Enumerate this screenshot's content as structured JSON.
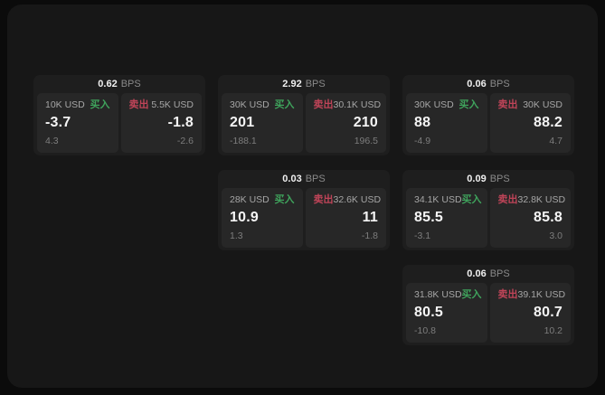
{
  "labels": {
    "buy": "买入",
    "sell": "卖出",
    "bps_unit": "BPS"
  },
  "colors": {
    "buy_text": "#3fa35c",
    "sell_text": "#bf4458",
    "outer_background": "#0b0b0b",
    "window_background": "#171717",
    "card_background": "#1e1e1e",
    "pane_background": "#272727"
  },
  "cards": [
    {
      "row": 0,
      "col": 0,
      "bps": "0.62",
      "buy": {
        "size": "10K USD",
        "value": "-3.7",
        "sub": "4.3"
      },
      "sell": {
        "size": "5.5K USD",
        "value": "-1.8",
        "sub": "-2.6"
      }
    },
    {
      "row": 0,
      "col": 1,
      "bps": "2.92",
      "buy": {
        "size": "30K USD",
        "value": "201",
        "sub": "-188.1"
      },
      "sell": {
        "size": "30.1K USD",
        "value": "210",
        "sub": "196.5"
      }
    },
    {
      "row": 0,
      "col": 2,
      "bps": "0.06",
      "buy": {
        "size": "30K USD",
        "value": "88",
        "sub": "-4.9"
      },
      "sell": {
        "size": "30K USD",
        "value": "88.2",
        "sub": "4.7"
      }
    },
    {
      "row": 1,
      "col": 1,
      "bps": "0.03",
      "buy": {
        "size": "28K USD",
        "value": "10.9",
        "sub": "1.3"
      },
      "sell": {
        "size": "32.6K USD",
        "value": "11",
        "sub": "-1.8"
      }
    },
    {
      "row": 1,
      "col": 2,
      "bps": "0.09",
      "buy": {
        "size": "34.1K USD",
        "value": "85.5",
        "sub": "-3.1"
      },
      "sell": {
        "size": "32.8K USD",
        "value": "85.8",
        "sub": "3.0"
      }
    },
    {
      "row": 2,
      "col": 2,
      "bps": "0.06",
      "buy": {
        "size": "31.8K USD",
        "value": "80.5",
        "sub": "-10.8"
      },
      "sell": {
        "size": "39.1K USD",
        "value": "80.7",
        "sub": "10.2"
      }
    }
  ]
}
